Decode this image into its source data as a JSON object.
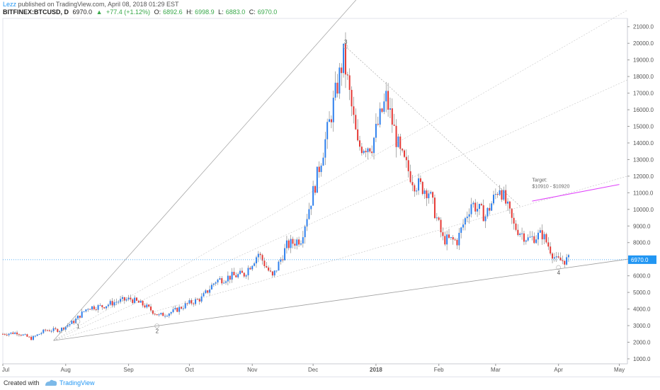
{
  "header": {
    "author": "Lezz",
    "published": "published on TradingView.com, April 08, 2018 01:29 EST",
    "symbol": "BITFINEX:BTCUSD, D",
    "last": "6970.0",
    "change": "+77.4 (+1.12%)",
    "open_label": "O:",
    "open": "6892.6",
    "high_label": "H:",
    "high": "6998.9",
    "low_label": "L:",
    "low": "6883.0",
    "close_label": "C:",
    "close": "6970.0"
  },
  "footer": {
    "created": "Created with",
    "brand": "TradingView"
  },
  "colors": {
    "up": "#2f80ed",
    "down": "#e53935",
    "price_line": "#2196f3",
    "target_line": "#e040fb",
    "trend": "#9e9e9e"
  },
  "chart_data": {
    "type": "candlestick",
    "title": "",
    "ylim": [
      700,
      21500
    ],
    "yticks": [
      "1000.0",
      "2000.0",
      "3000.0",
      "4000.0",
      "5000.0",
      "6000.0",
      "7000.0",
      "8000.0",
      "9000.0",
      "10000.0",
      "11000.0",
      "12000.0",
      "13000.0",
      "14000.0",
      "15000.0",
      "16000.0",
      "17000.0",
      "18000.0",
      "19000.0",
      "20000.0",
      "21000.0"
    ],
    "xticks": [
      "Jul",
      "Aug",
      "Sep",
      "Oct",
      "Nov",
      "Dec",
      "2018",
      "Feb",
      "Mar",
      "Apr",
      "May"
    ],
    "x_range": [
      "2017-07-01",
      "2018-05-05"
    ],
    "current_price_label": "6970.0",
    "current_price": 6970,
    "weekly_closes": [
      [
        "2017-07-01",
        2500
      ],
      [
        "2017-07-08",
        2580
      ],
      [
        "2017-07-15",
        2220
      ],
      [
        "2017-07-22",
        2720
      ],
      [
        "2017-07-29",
        2740
      ],
      [
        "2017-08-05",
        3250
      ],
      [
        "2017-08-12",
        4100
      ],
      [
        "2017-08-19",
        4160
      ],
      [
        "2017-08-26",
        4450
      ],
      [
        "2017-09-02",
        4600
      ],
      [
        "2017-09-09",
        4200
      ],
      [
        "2017-09-16",
        3600
      ],
      [
        "2017-09-23",
        3850
      ],
      [
        "2017-09-30",
        4300
      ],
      [
        "2017-10-07",
        4650
      ],
      [
        "2017-10-14",
        5700
      ],
      [
        "2017-10-21",
        5950
      ],
      [
        "2017-10-28",
        6100
      ],
      [
        "2017-11-04",
        7350
      ],
      [
        "2017-11-11",
        5900
      ],
      [
        "2017-11-18",
        7800
      ],
      [
        "2017-11-25",
        8250
      ],
      [
        "2017-12-02",
        11500
      ],
      [
        "2017-12-09",
        15200
      ],
      [
        "2017-12-16",
        19200
      ],
      [
        "2017-12-23",
        13800
      ],
      [
        "2017-12-30",
        13900
      ],
      [
        "2018-01-06",
        16700
      ],
      [
        "2018-01-13",
        13300
      ],
      [
        "2018-01-20",
        11600
      ],
      [
        "2018-01-27",
        11100
      ],
      [
        "2018-02-03",
        8200
      ],
      [
        "2018-02-10",
        8100
      ],
      [
        "2018-02-17",
        10400
      ],
      [
        "2018-02-24",
        9600
      ],
      [
        "2018-03-03",
        11400
      ],
      [
        "2018-03-10",
        9000
      ],
      [
        "2018-03-17",
        8200
      ],
      [
        "2018-03-24",
        8500
      ],
      [
        "2018-03-31",
        6900
      ],
      [
        "2018-04-07",
        6970
      ]
    ],
    "annotations": [
      {
        "label": "1",
        "date": "2017-08-07",
        "price": 3250
      },
      {
        "label": "2",
        "date": "2017-09-15",
        "price": 2980
      },
      {
        "label": "3",
        "date": "2017-12-17",
        "price": 19800
      },
      {
        "label": "4",
        "date": "2018-04-01",
        "price": 6500
      },
      {
        "label": "Target:\n$10910 - $10920",
        "date": "2018-03-19",
        "price": 11000
      }
    ]
  }
}
